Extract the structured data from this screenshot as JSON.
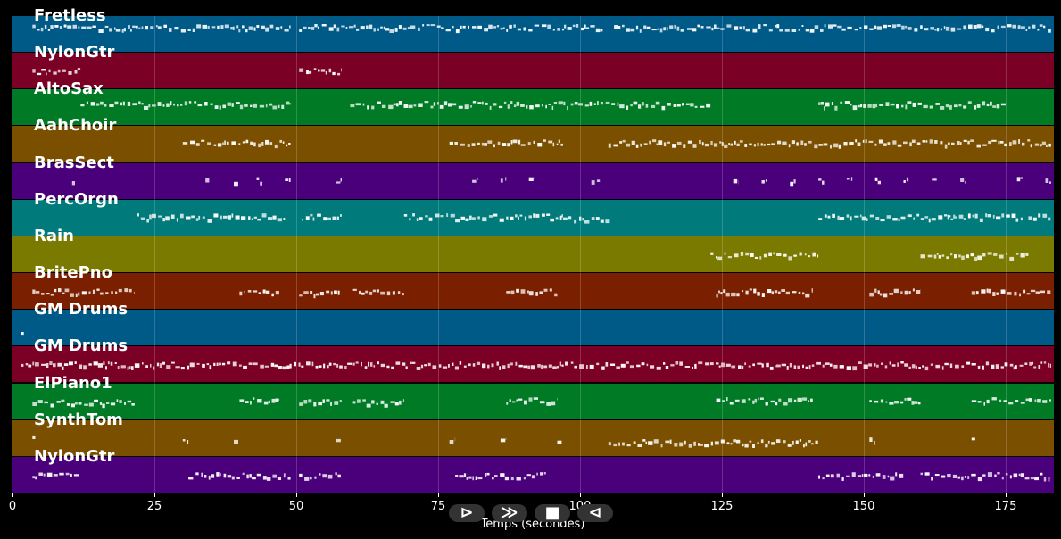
{
  "axis": {
    "xlabel": "Temps (secondes)",
    "xmax_seconds": 183.5,
    "ticks": [
      {
        "label": "0",
        "value": 0
      },
      {
        "label": "25",
        "value": 25
      },
      {
        "label": "50",
        "value": 50
      },
      {
        "label": "75",
        "value": 75
      },
      {
        "label": "100",
        "value": 100
      },
      {
        "label": "125",
        "value": 125
      },
      {
        "label": "150",
        "value": 150
      },
      {
        "label": "175",
        "value": 175
      }
    ]
  },
  "controls": [
    {
      "name": "play-button",
      "glyph": "⊳",
      "icon": "play-icon"
    },
    {
      "name": "fast-forward-button",
      "glyph": "≫",
      "icon": "fast-forward-icon"
    },
    {
      "name": "stop-button",
      "glyph": "■",
      "icon": "stop-icon"
    },
    {
      "name": "rewind-button",
      "glyph": "⊲",
      "icon": "rewind-icon"
    }
  ],
  "tracks": [
    {
      "name": "Fretless",
      "color": "#005a87",
      "segments": [
        [
          3.5,
          49,
          0.3
        ],
        [
          50.5,
          104,
          0.3
        ],
        [
          106,
          124,
          0.3
        ],
        [
          124,
          183,
          0.3
        ]
      ]
    },
    {
      "name": "NylonGtr",
      "color": "#7b0026",
      "segments": [
        [
          3.5,
          12,
          0.5
        ],
        [
          50.5,
          58,
          0.5
        ]
      ]
    },
    {
      "name": "AltoSax",
      "color": "#007a25",
      "segments": [
        [
          12,
          49,
          0.4
        ],
        [
          59.5,
          123,
          0.4
        ],
        [
          142,
          175,
          0.4
        ]
      ]
    },
    {
      "name": "AahChoir",
      "color": "#7a5000",
      "segments": [
        [
          30,
          49,
          0.45
        ],
        [
          77,
          97,
          0.45
        ],
        [
          105,
          183,
          0.45
        ]
      ]
    },
    {
      "name": "BrasSect",
      "color": "#4a007a",
      "segments": [
        [
          10.5,
          11,
          0.45
        ],
        [
          34,
          35,
          0.45
        ],
        [
          39,
          40,
          0.45
        ],
        [
          43,
          44,
          0.45
        ],
        [
          48,
          49,
          0.45
        ],
        [
          57,
          58,
          0.45
        ],
        [
          81,
          82,
          0.45
        ],
        [
          86,
          87,
          0.45
        ],
        [
          91,
          92,
          0.45
        ],
        [
          102,
          103.5,
          0.45
        ],
        [
          127,
          128,
          0.45
        ],
        [
          132,
          133,
          0.45
        ],
        [
          137,
          138,
          0.45
        ],
        [
          142,
          143,
          0.45
        ],
        [
          147,
          148,
          0.45
        ],
        [
          152,
          153,
          0.45
        ],
        [
          157,
          158,
          0.45
        ],
        [
          162,
          163,
          0.45
        ],
        [
          167,
          168,
          0.45
        ],
        [
          177,
          178,
          0.45
        ],
        [
          182,
          183,
          0.45
        ]
      ]
    },
    {
      "name": "PercOrgn",
      "color": "#007a7a",
      "segments": [
        [
          22,
          48,
          0.45
        ],
        [
          51,
          58,
          0.45
        ],
        [
          69,
          97,
          0.45
        ],
        [
          97,
          105.5,
          0.5
        ],
        [
          142,
          178,
          0.45
        ],
        [
          179,
          183,
          0.45
        ]
      ]
    },
    {
      "name": "Rain",
      "color": "#7a7a00",
      "segments": [
        [
          123,
          142,
          0.5
        ],
        [
          160,
          179,
          0.5
        ]
      ]
    },
    {
      "name": "BritePno",
      "color": "#7a2000",
      "segments": [
        [
          3.5,
          21.5,
          0.5
        ],
        [
          40,
          47,
          0.5
        ],
        [
          50.5,
          58,
          0.55
        ],
        [
          60,
          69,
          0.5
        ],
        [
          87,
          96,
          0.5
        ],
        [
          124,
          141,
          0.5
        ],
        [
          151,
          160,
          0.5
        ],
        [
          169,
          183,
          0.5
        ]
      ]
    },
    {
      "name": "GM Drums",
      "color": "#005a87",
      "segments": [
        [
          1.5,
          2,
          0.6
        ]
      ]
    },
    {
      "name": "GM Drums",
      "color": "#7b0026",
      "segments": [
        [
          1.5,
          183,
          0.5
        ]
      ]
    },
    {
      "name": "ElPiano1",
      "color": "#007a25",
      "segments": [
        [
          3.5,
          21.5,
          0.5
        ],
        [
          40,
          47,
          0.45
        ],
        [
          50.5,
          58,
          0.5
        ],
        [
          60,
          69,
          0.5
        ],
        [
          87,
          96,
          0.45
        ],
        [
          124,
          141,
          0.45
        ],
        [
          151,
          160,
          0.45
        ],
        [
          169,
          183,
          0.45
        ]
      ]
    },
    {
      "name": "SynthTom",
      "color": "#7a5000",
      "segments": [
        [
          3.5,
          4,
          0.5
        ],
        [
          30,
          31,
          0.5
        ],
        [
          39,
          40,
          0.5
        ],
        [
          57,
          58,
          0.5
        ],
        [
          77,
          78,
          0.5
        ],
        [
          86,
          87,
          0.5
        ],
        [
          96,
          97,
          0.5
        ],
        [
          105,
          142,
          0.6
        ],
        [
          151,
          152,
          0.5
        ],
        [
          169,
          170,
          0.5
        ]
      ]
    },
    {
      "name": "NylonGtr",
      "color": "#4a007a",
      "segments": [
        [
          3.5,
          12,
          0.5
        ],
        [
          31,
          49,
          0.5
        ],
        [
          50.5,
          58,
          0.5
        ],
        [
          78,
          94,
          0.5
        ],
        [
          142,
          157,
          0.5
        ],
        [
          160,
          183,
          0.5
        ]
      ]
    }
  ]
}
